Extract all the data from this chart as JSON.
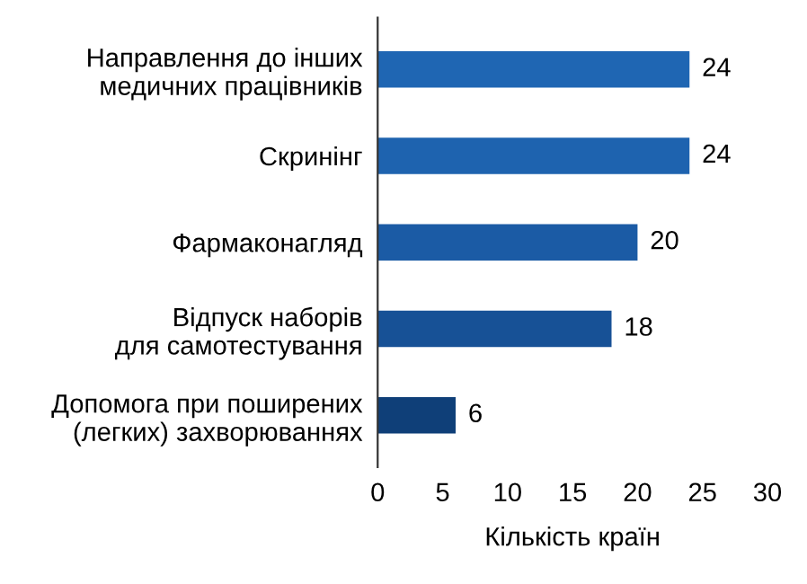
{
  "chart_data": {
    "type": "bar",
    "orientation": "horizontal",
    "xlabel": "Кількість країн",
    "categories": [
      "Направлення до інших\nмедичних працівників",
      "Скринінг",
      "Фармаконагляд",
      "Відпуск наборів\nдля самотестування",
      "Допомога при поширених\n(легких) захворюваннях"
    ],
    "values": [
      24,
      24,
      20,
      18,
      6
    ],
    "colors": [
      "#1f66b3",
      "#1e63af",
      "#1b5ba5",
      "#175196",
      "#0f3f78"
    ],
    "xlim": [
      0,
      30
    ],
    "xticks": [
      0,
      5,
      10,
      15,
      20,
      25,
      30
    ],
    "data_labels": true,
    "grid": false
  }
}
